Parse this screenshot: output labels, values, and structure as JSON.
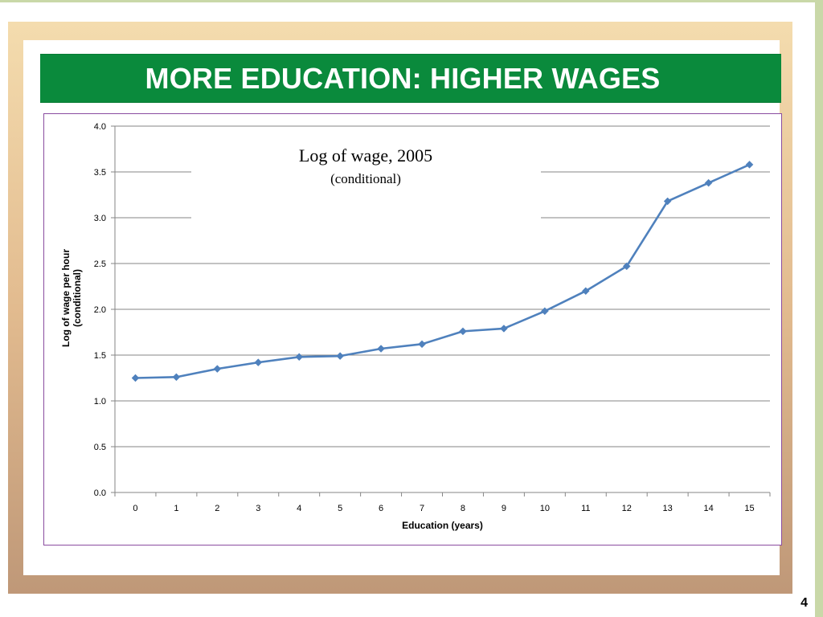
{
  "slide": {
    "title": "MORE EDUCATION: HIGHER WAGES",
    "page_number": "4"
  },
  "colors": {
    "title_bar": "#0a8a3c",
    "line": "#4f81bd",
    "gridline": "#868686",
    "chart_border": "#8a4ca0"
  },
  "chart_data": {
    "type": "line",
    "title": "Log of wage, 2005",
    "subtitle": "(conditional)",
    "xlabel": "Education (years)",
    "ylabel_lines": [
      "Log of wage per hour",
      "(conditional)"
    ],
    "categories": [
      "0",
      "1",
      "2",
      "3",
      "4",
      "5",
      "6",
      "7",
      "8",
      "9",
      "10",
      "11",
      "12",
      "13",
      "14",
      "15"
    ],
    "series": [
      {
        "values": [
          1.25,
          1.26,
          1.35,
          1.42,
          1.48,
          1.49,
          1.57,
          1.62,
          1.76,
          1.79,
          1.98,
          2.2,
          2.47,
          3.18,
          3.38,
          3.58
        ],
        "marker": "diamond"
      }
    ],
    "ylim": [
      0,
      4
    ],
    "yticks": [
      "0.0",
      "0.5",
      "1.0",
      "1.5",
      "2.0",
      "2.5",
      "3.0",
      "3.5",
      "4.0"
    ],
    "grid": true,
    "legend": "none"
  }
}
